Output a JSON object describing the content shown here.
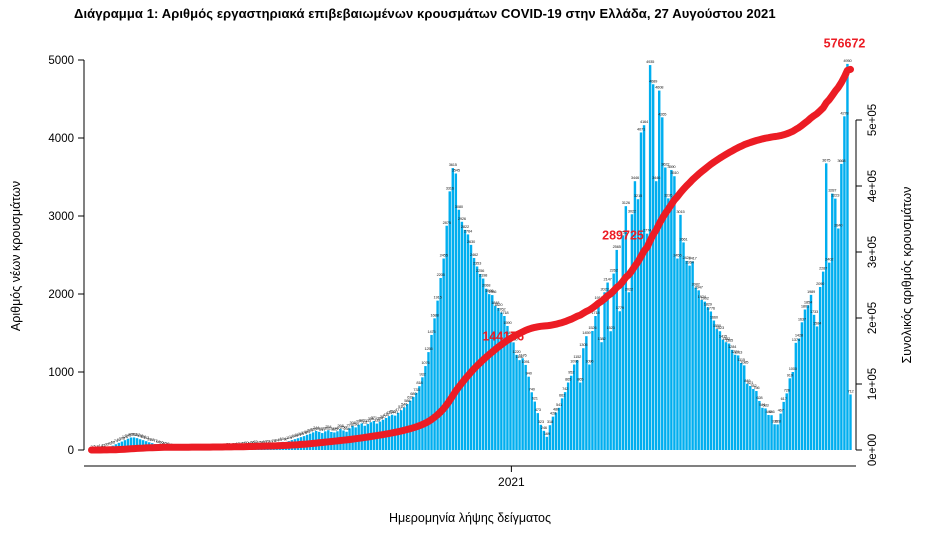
{
  "chart_data": {
    "type": "bar",
    "title": "Διάγραμμα 1: Αριθμός εργαστηριακά επιβεβαιωμένων κρουσμάτων COVID-19 στην Ελλάδα, 27 Αυγούστου 2021",
    "xlabel": "Ημερομηνία λήψης δείγματος",
    "ylabel_left": "Αριθμός νέων κρουσμάτων",
    "ylabel_right": "Συνολικός αριθμός κρουσμάτων",
    "x_ticks": [
      {
        "label": "2021",
        "frac": 0.553
      }
    ],
    "y_left": {
      "ticks": [
        0,
        1000,
        2000,
        3000,
        4000,
        5000
      ],
      "max": 5000
    },
    "y_right": {
      "ticks": [
        "0e+00",
        "1e+05",
        "2e+05",
        "3e+05",
        "4e+05",
        "5e+05"
      ],
      "max": 500000
    },
    "legend": "none",
    "grid": false,
    "colors": {
      "bar": "#00aeef",
      "line": "#ec1c24",
      "bar_label": "#1b1b1b",
      "axis": "#000000"
    },
    "series": [
      {
        "name": "daily-new-cases",
        "type": "bar",
        "values": [
          3,
          5,
          9,
          14,
          21,
          30,
          42,
          56,
          74,
          92,
          108,
          126,
          145,
          160,
          161,
          152,
          138,
          126,
          113,
          99,
          88,
          77,
          66,
          56,
          46,
          36,
          28,
          21,
          16,
          12,
          10,
          14,
          11,
          8,
          12,
          9,
          14,
          10,
          12,
          9,
          13,
          17,
          21,
          18,
          26,
          30,
          24,
          33,
          40,
          37,
          45,
          50,
          42,
          56,
          62,
          53,
          58,
          66,
          70,
          63,
          76,
          84,
          93,
          104,
          97,
          114,
          127,
          139,
          151,
          165,
          178,
          195,
          209,
          226,
          244,
          233,
          217,
          239,
          254,
          231,
          225,
          240,
          268,
          250,
          234,
          278,
          308,
          290,
          324,
          340,
          311,
          333,
          356,
          371,
          339,
          364,
          387,
          410,
          434,
          452,
          441,
          477,
          510,
          546,
          588,
          632,
          680,
          733,
          818,
          932,
          1076,
          1255,
          1475,
          1688,
          1915,
          2205,
          2455,
          2875,
          3316,
          3615,
          3545,
          3080,
          2926,
          2822,
          2764,
          2630,
          2462,
          2353,
          2256,
          2198,
          2068,
          1998,
          1986,
          1848,
          1820,
          1762,
          1718,
          1590,
          1459,
          1380,
          1220,
          1152,
          1176,
          1091,
          940,
          740,
          621,
          473,
          323,
          246,
          169,
          318,
          428,
          480,
          541,
          662,
          742,
          865,
          952,
          1096,
          1152,
          865,
          1305,
          1459,
          1096,
          1526,
          1718,
          1913,
          1382,
          2022,
          2147,
          1523,
          2262,
          2565,
          1779,
          2752,
          3126,
          2022,
          3022,
          3446,
          3215,
          4071,
          4164,
          2774,
          4935,
          4689,
          3446,
          4608,
          4265,
          3622,
          3226,
          3590,
          3510,
          2455,
          3015,
          2661,
          2424,
          2364,
          2417,
          2082,
          2047,
          1924,
          1902,
          1829,
          1776,
          1660,
          1550,
          1523,
          1415,
          1382,
          1365,
          1284,
          1221,
          1213,
          1115,
          1085,
          849,
          821,
          782,
          756,
          628,
          541,
          533,
          449,
          446,
          330,
          328,
          467,
          617,
          726,
          919,
          1000,
          1374,
          1428,
          1637,
          1801,
          1854,
          1989,
          1733,
          1584,
          2090,
          2287,
          3675,
          2402,
          3287,
          3223,
          2840,
          3668,
          4278,
          4950,
          712
        ]
      },
      {
        "name": "cumulative-cases",
        "type": "line",
        "total": 576672,
        "annotations": [
          {
            "value": 144176,
            "label": "144176"
          },
          {
            "value": 289725,
            "label": "289725"
          },
          {
            "value": 576672,
            "label": "576672"
          }
        ]
      }
    ]
  }
}
